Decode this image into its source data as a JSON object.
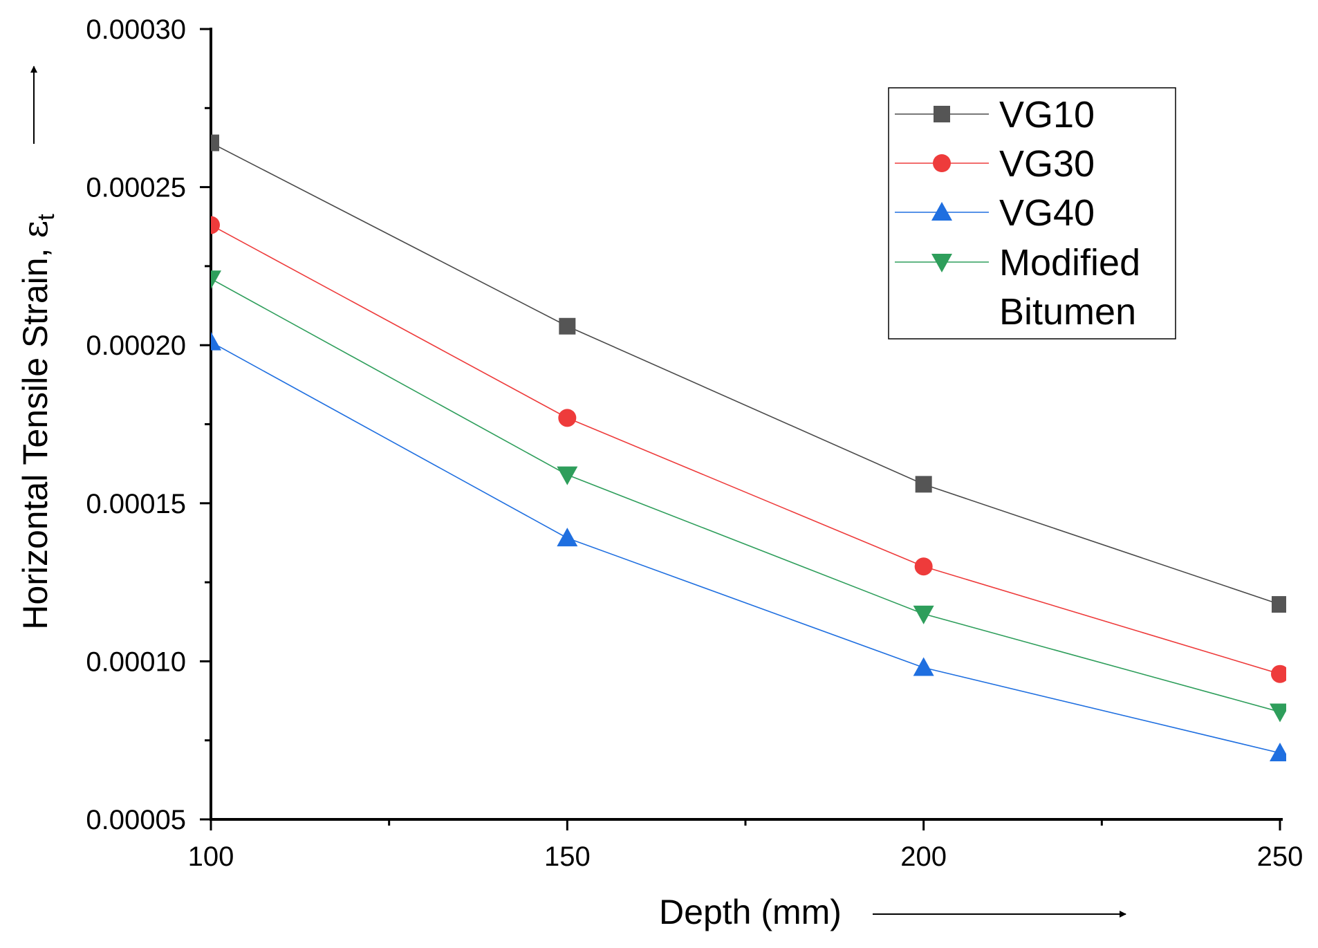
{
  "chart_data": {
    "type": "line",
    "title": "",
    "xlabel": "Depth (mm)",
    "ylabel_main": "Horizontal Tensile Strain, ",
    "ylabel_symbol": "ε",
    "ylabel_subscript": "t",
    "xlim": [
      100,
      250
    ],
    "ylim": [
      5e-05,
      0.0003
    ],
    "x_ticks": [
      100,
      150,
      200,
      250
    ],
    "x_tick_labels": [
      "100",
      "150",
      "200",
      "250"
    ],
    "y_ticks": [
      5e-05,
      0.0001,
      0.00015,
      0.0002,
      0.00025,
      0.0003
    ],
    "y_tick_labels": [
      "0.00005",
      "0.00010",
      "0.00015",
      "0.00020",
      "0.00025",
      "0.00030"
    ],
    "grid": false,
    "legend_position": "top-right",
    "x": [
      100,
      150,
      200,
      250
    ],
    "series": [
      {
        "name": "VG10",
        "marker": "square",
        "color": "#555555",
        "line_color": "#4a4a4a",
        "values": [
          0.000264,
          0.000206,
          0.000156,
          0.000118
        ]
      },
      {
        "name": "VG30",
        "marker": "circle",
        "color": "#ee3b3b",
        "line_color": "#ee3b3b",
        "values": [
          0.000238,
          0.000177,
          0.00013,
          9.6e-05
        ]
      },
      {
        "name": "VG40",
        "marker": "triangle-up",
        "color": "#1f6fe0",
        "line_color": "#1f6fe0",
        "values": [
          0.000201,
          0.000139,
          9.8e-05,
          7.1e-05
        ]
      },
      {
        "name": "Modified Bitumen",
        "label_lines": [
          "Modified",
          "Bitumen"
        ],
        "marker": "triangle-down",
        "color": "#2e9e5b",
        "line_color": "#2e9e5b",
        "values": [
          0.000221,
          0.000159,
          0.000115,
          8.4e-05
        ]
      }
    ]
  }
}
